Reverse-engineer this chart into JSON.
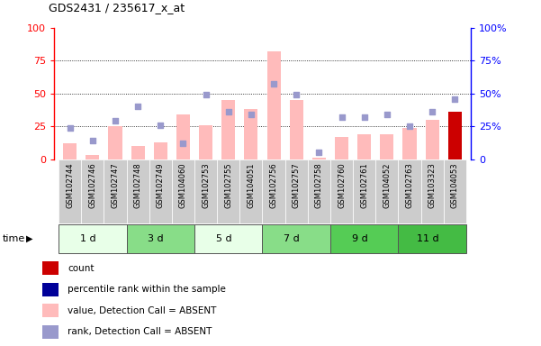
{
  "title": "GDS2431 / 235617_x_at",
  "samples": [
    "GSM102744",
    "GSM102746",
    "GSM102747",
    "GSM102748",
    "GSM102749",
    "GSM104060",
    "GSM102753",
    "GSM102755",
    "GSM104051",
    "GSM102756",
    "GSM102757",
    "GSM102758",
    "GSM102760",
    "GSM102761",
    "GSM104052",
    "GSM102763",
    "GSM103323",
    "GSM104053"
  ],
  "time_groups": [
    {
      "label": "1 d",
      "start": 0,
      "end": 3,
      "color": "#e8ffe8"
    },
    {
      "label": "3 d",
      "start": 3,
      "end": 6,
      "color": "#88dd88"
    },
    {
      "label": "5 d",
      "start": 6,
      "end": 9,
      "color": "#e8ffe8"
    },
    {
      "label": "7 d",
      "start": 9,
      "end": 12,
      "color": "#88dd88"
    },
    {
      "label": "9 d",
      "start": 12,
      "end": 15,
      "color": "#55cc55"
    },
    {
      "label": "11 d",
      "start": 15,
      "end": 18,
      "color": "#44bb44"
    }
  ],
  "pink_bars": [
    12,
    3,
    25,
    10,
    13,
    34,
    26,
    45,
    38,
    82,
    45,
    1,
    17,
    19,
    19,
    24,
    30,
    36
  ],
  "blue_squares": [
    24,
    14,
    29,
    40,
    26,
    12,
    49,
    36,
    34,
    57,
    49,
    5,
    32,
    32,
    34,
    25,
    36,
    46
  ],
  "count_bar_index": 17,
  "count_bar_value": 36,
  "count_bar_color": "#cc0000",
  "pink_bar_color": "#ffbbbb",
  "blue_sq_color": "#9999cc",
  "ylim_left": [
    0,
    100
  ],
  "ylim_right": [
    0,
    100
  ],
  "grid_lines": [
    25,
    50,
    75
  ],
  "legend_items": [
    {
      "color": "#cc0000",
      "label": "count"
    },
    {
      "color": "#000099",
      "label": "percentile rank within the sample"
    },
    {
      "color": "#ffbbbb",
      "label": "value, Detection Call = ABSENT"
    },
    {
      "color": "#9999cc",
      "label": "rank, Detection Call = ABSENT"
    }
  ]
}
